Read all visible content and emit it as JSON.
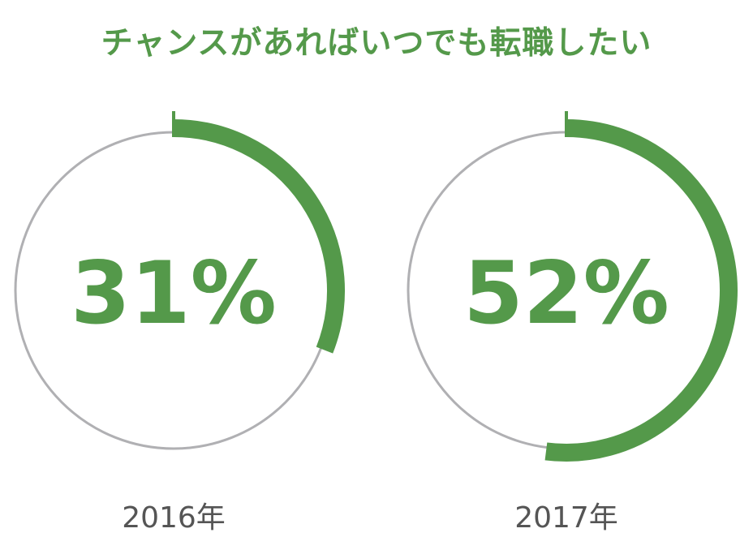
{
  "title": "チャンスがあればいつでも転職したい",
  "colors": {
    "accent": "#54994a",
    "track": "#b0b0b3",
    "year_text": "#555555"
  },
  "chart_data": {
    "type": "pie",
    "title": "チャンスがあればいつでも転職したい",
    "categories": [
      "2016年",
      "2017年"
    ],
    "values": [
      31,
      52
    ],
    "value_labels": [
      "31%",
      "52%"
    ],
    "unit": "%",
    "ylim": [
      0,
      100
    ]
  }
}
